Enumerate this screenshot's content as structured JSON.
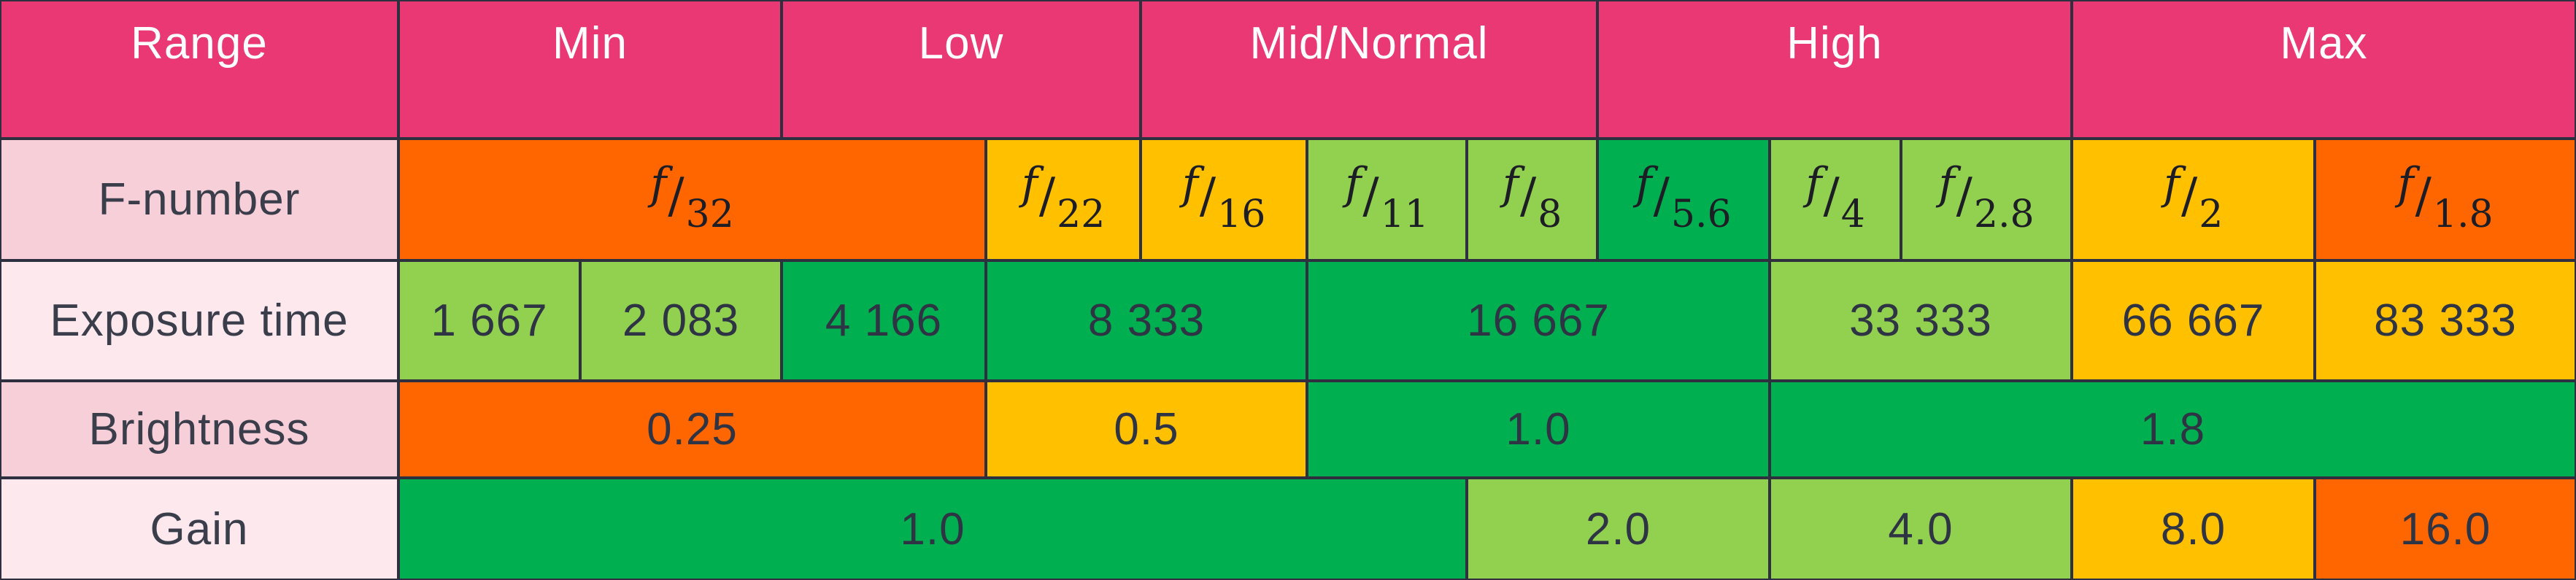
{
  "table": {
    "header": {
      "range": "Range",
      "min": "Min",
      "low": "Low",
      "mid": "Mid/Normal",
      "high": "High",
      "max": "Max"
    },
    "rows": {
      "fnumber": {
        "label": "F-number",
        "symbol": "f",
        "slash": "/",
        "values": [
          "32",
          "22",
          "16",
          "11",
          "8",
          "5.6",
          "4",
          "2.8",
          "2",
          "1.8"
        ]
      },
      "exposure": {
        "label": "Exposure time",
        "values": [
          "1 667",
          "2 083",
          "4 166",
          "8 333",
          "16 667",
          "33 333",
          "66 667",
          "83 333"
        ]
      },
      "brightness": {
        "label": "Brightness",
        "values": [
          "0.25",
          "0.5",
          "1.0",
          "1.8"
        ]
      },
      "gain": {
        "label": "Gain",
        "values": [
          "1.0",
          "2.0",
          "4.0",
          "8.0",
          "16.0"
        ]
      }
    }
  },
  "colors": {
    "header_bg": "#ea3874",
    "header_text": "#ffffff",
    "label_bg_dark": "#f7cfd9",
    "label_bg_light": "#fce8ed",
    "orange": "#ff6600",
    "yellow": "#ffc000",
    "light_green": "#92d050",
    "green": "#00b050",
    "border": "#2e3040"
  }
}
